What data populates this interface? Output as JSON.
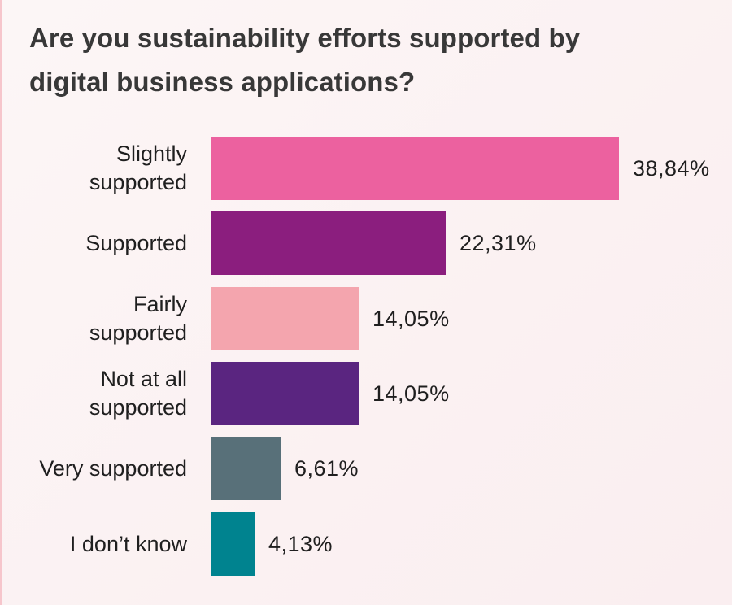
{
  "title": "Are you sustainability efforts supported by digital business applications?",
  "title_lines": [
    "Are you sustainability efforts supported by",
    "digital business applications?"
  ],
  "chart_data": {
    "type": "bar",
    "orientation": "horizontal",
    "title": "Are you sustainability efforts supported by digital business applications?",
    "xlabel": "",
    "ylabel": "",
    "categories": [
      "Slightly supported",
      "Supported",
      "Fairly supported",
      "Not at all supported",
      "Very supported",
      "I don’t know"
    ],
    "values": [
      38.84,
      22.31,
      14.05,
      14.05,
      6.61,
      4.13
    ],
    "value_labels": [
      "38,84%",
      "22,31%",
      "14,05%",
      "14,05%",
      "6,61%",
      "4,13%"
    ],
    "colors": [
      "#ec619f",
      "#8b1e7e",
      "#f4a5ae",
      "#5a2580",
      "#587079",
      "#00838f"
    ],
    "unit": "%",
    "grid": false,
    "legend": null
  },
  "rows": [
    {
      "label_lines": [
        "Slightly",
        "supported"
      ],
      "value_label": "38,84%",
      "value": 38.84,
      "color": "#ec619f"
    },
    {
      "label_lines": [
        "Supported"
      ],
      "value_label": "22,31%",
      "value": 22.31,
      "color": "#8b1e7e"
    },
    {
      "label_lines": [
        "Fairly",
        "supported"
      ],
      "value_label": "14,05%",
      "value": 14.05,
      "color": "#f4a5ae"
    },
    {
      "label_lines": [
        "Not at all",
        "supported"
      ],
      "value_label": "14,05%",
      "value": 14.05,
      "color": "#5a2580"
    },
    {
      "label_lines": [
        "Very supported"
      ],
      "value_label": "6,61%",
      "value": 6.61,
      "color": "#587079"
    },
    {
      "label_lines": [
        "I don’t know"
      ],
      "value_label": "4,13%",
      "value": 4.13,
      "color": "#00838f"
    }
  ]
}
